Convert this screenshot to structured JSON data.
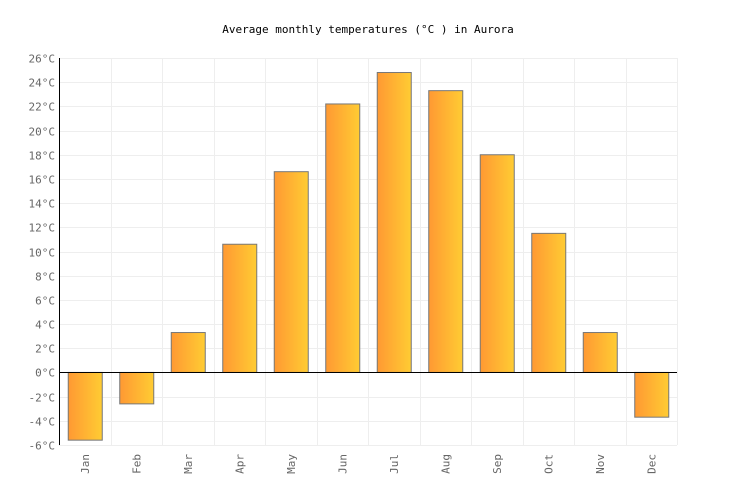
{
  "chart_data": {
    "type": "bar",
    "title": "Average monthly temperatures (°C ) in Aurora",
    "categories": [
      "Jan",
      "Feb",
      "Mar",
      "Apr",
      "May",
      "Jun",
      "Jul",
      "Aug",
      "Sep",
      "Oct",
      "Nov",
      "Dec"
    ],
    "values": [
      -5.6,
      -2.6,
      3.3,
      10.6,
      16.6,
      22.2,
      24.8,
      23.3,
      18.0,
      11.5,
      3.3,
      -3.7
    ],
    "ylim": [
      -6,
      26
    ],
    "yticks": [
      "-6°C",
      "-4°C",
      "-2°C",
      "0°C",
      "2°C",
      "4°C",
      "6°C",
      "8°C",
      "10°C",
      "12°C",
      "14°C",
      "16°C",
      "18°C",
      "20°C",
      "22°C",
      "24°C",
      "26°C"
    ],
    "grid": true,
    "colors": {
      "bar_start": "#ff9933",
      "bar_end": "#ffcc33",
      "bar_border": "#777777",
      "grid": "#eeeeee"
    }
  }
}
